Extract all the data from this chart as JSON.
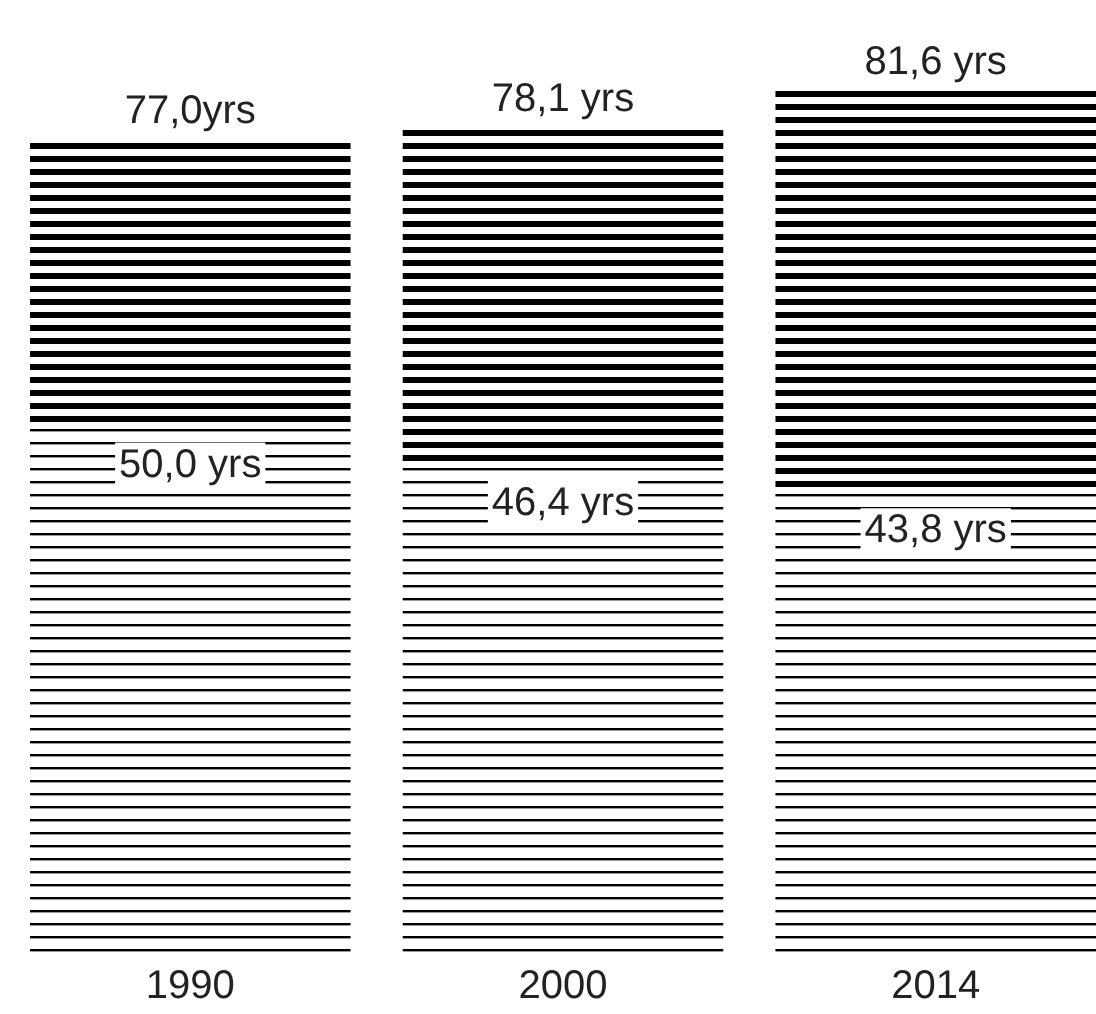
{
  "chart_data": {
    "type": "bar",
    "stacked": true,
    "categories": [
      "1990",
      "2000",
      "2014"
    ],
    "series": [
      {
        "color": "#000000",
        "values": [
          50.0,
          46.4,
          43.8
        ],
        "value_labels": [
          "50,0 yrs",
          "46,4 yrs",
          "43,8 yrs"
        ]
      },
      {
        "color": "#000000",
        "values": [
          27.0,
          31.7,
          37.8
        ]
      }
    ],
    "totals": [
      "77,0yrs",
      "78,1 yrs",
      "81,6 yrs"
    ]
  }
}
